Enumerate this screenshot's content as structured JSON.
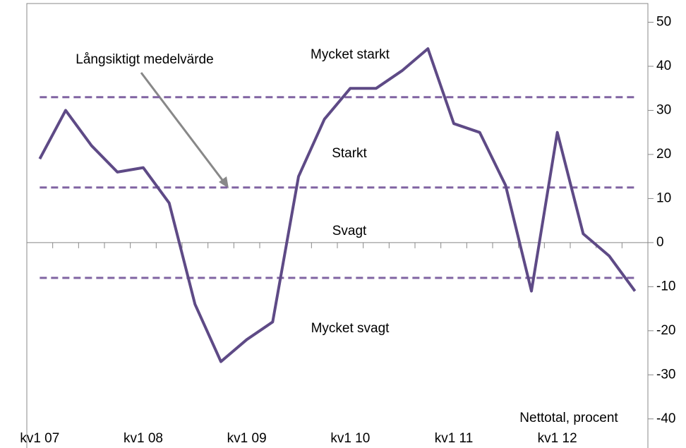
{
  "chart_data": {
    "type": "line",
    "categories": [
      "kv1 07",
      null,
      null,
      null,
      "kv1 08",
      null,
      null,
      null,
      "kv1 09",
      null,
      null,
      null,
      "kv1 10",
      null,
      null,
      null,
      "kv1 11",
      null,
      null,
      null,
      "kv1 12",
      null,
      null,
      null
    ],
    "series": [
      {
        "name": "Nettotal",
        "color": "#5e4a86",
        "values": [
          19,
          30,
          22,
          16,
          17,
          9,
          -14,
          -27,
          -22,
          -18,
          15,
          28,
          35,
          35,
          39,
          44,
          27,
          25,
          13,
          -11,
          25,
          2,
          -3,
          -11
        ]
      }
    ],
    "reference_lines": {
      "color": "#8064a2",
      "values": [
        33,
        12.5,
        -8
      ]
    },
    "ylim": [
      -45,
      55
    ],
    "yticks": [
      50,
      40,
      30,
      20,
      10,
      0,
      -10,
      -20,
      -30,
      -40
    ],
    "annotations": {
      "average": "Långsiktigt medelvärde",
      "very_strong": "Mycket starkt",
      "strong": "Starkt",
      "weak": "Svagt",
      "very_weak": "Mycket svagt",
      "unit": "Nettotal, procent"
    }
  }
}
